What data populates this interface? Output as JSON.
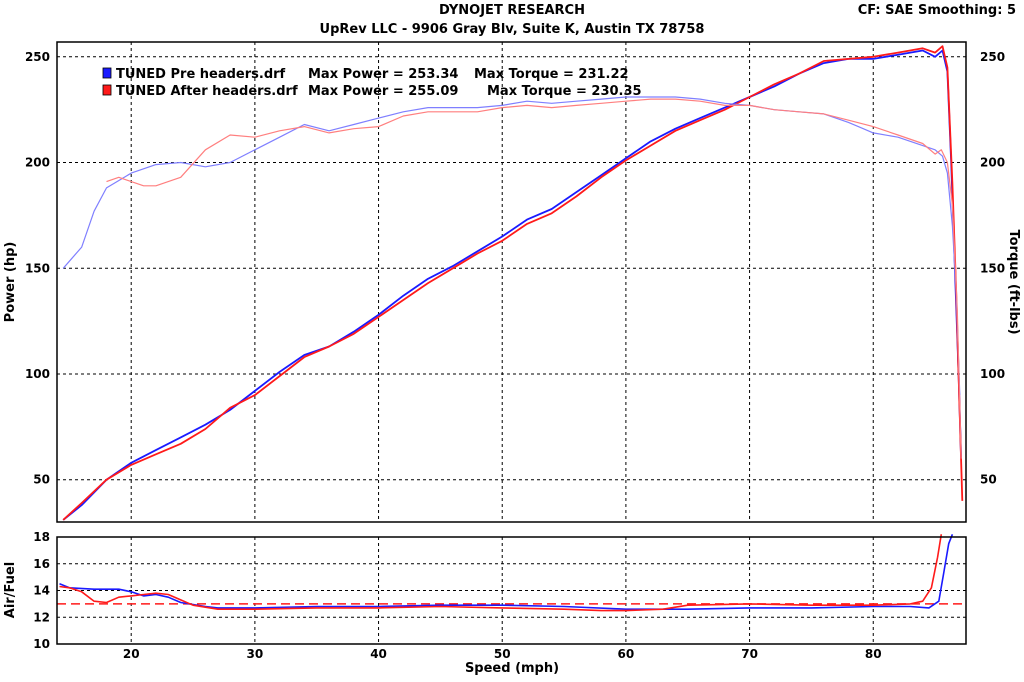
{
  "header": {
    "title": "DYNOJET RESEARCH",
    "subtitle": "UpRev LLC - 9906 Gray Blv, Suite K, Austin TX 78758",
    "settings": "CF: SAE  Smoothing: 5"
  },
  "legend": [
    {
      "file": "TUNED Pre headers.drf",
      "power_text": "Max Power = 253.34",
      "torque_text": "Max Torque = 231.22",
      "color": "#1a1aff"
    },
    {
      "file": "TUNED After headers.drf",
      "power_text": "Max Power = 255.09",
      "torque_text": "Max Torque = 230.35",
      "color": "#ff1a1a"
    }
  ],
  "colors": {
    "pre": "#1a1aff",
    "pre_light": "#7f7fff",
    "after": "#ff1a1a",
    "after_light": "#ff7f7f"
  },
  "chart_data": [
    {
      "type": "line",
      "xlabel": "",
      "ylabel": "Power (hp)",
      "y2label": "Torque (ft-lbs)",
      "xlim": [
        14,
        87.5
      ],
      "ylim": [
        30,
        257
      ],
      "y2lim": [
        30,
        257
      ],
      "x_ticks": [
        20,
        30,
        40,
        50,
        60,
        70,
        80
      ],
      "y_ticks": [
        50,
        100,
        150,
        200,
        250
      ],
      "grid": true,
      "legend_position": "top-left",
      "series": [
        {
          "name": "TUNED Pre headers.drf",
          "measure": "power",
          "color": "#1a1aff",
          "points": [
            [
              14.5,
              31
            ],
            [
              16,
              38
            ],
            [
              18,
              50
            ],
            [
              20,
              58
            ],
            [
              22,
              64
            ],
            [
              24,
              70
            ],
            [
              26,
              76
            ],
            [
              28,
              83
            ],
            [
              30,
              92
            ],
            [
              32,
              101
            ],
            [
              34,
              109
            ],
            [
              36,
              113
            ],
            [
              38,
              120
            ],
            [
              40,
              128
            ],
            [
              42,
              137
            ],
            [
              44,
              145
            ],
            [
              46,
              151
            ],
            [
              48,
              158
            ],
            [
              50,
              165
            ],
            [
              52,
              173
            ],
            [
              54,
              178
            ],
            [
              56,
              186
            ],
            [
              58,
              194
            ],
            [
              60,
              202
            ],
            [
              62,
              210
            ],
            [
              64,
              216
            ],
            [
              66,
              221
            ],
            [
              68,
              226
            ],
            [
              70,
              231
            ],
            [
              72,
              236
            ],
            [
              74,
              242
            ],
            [
              76,
              247
            ],
            [
              78,
              249
            ],
            [
              80,
              249
            ],
            [
              82,
              251
            ],
            [
              84,
              253
            ],
            [
              85,
              250
            ],
            [
              85.6,
              253
            ],
            [
              86,
              243
            ],
            [
              86.3,
              200
            ],
            [
              86.6,
              150
            ],
            [
              86.9,
              100
            ],
            [
              87.1,
              60
            ]
          ]
        },
        {
          "name": "TUNED After headers.drf",
          "measure": "power",
          "color": "#ff1a1a",
          "points": [
            [
              14.5,
              31
            ],
            [
              16,
              39
            ],
            [
              18,
              50
            ],
            [
              20,
              57
            ],
            [
              22,
              62
            ],
            [
              24,
              67
            ],
            [
              26,
              74
            ],
            [
              28,
              84
            ],
            [
              30,
              90
            ],
            [
              32,
              99
            ],
            [
              34,
              108
            ],
            [
              36,
              113
            ],
            [
              38,
              119
            ],
            [
              40,
              127
            ],
            [
              42,
              135
            ],
            [
              44,
              143
            ],
            [
              46,
              150
            ],
            [
              48,
              157
            ],
            [
              50,
              163
            ],
            [
              52,
              171
            ],
            [
              54,
              176
            ],
            [
              56,
              184
            ],
            [
              58,
              193
            ],
            [
              60,
              201
            ],
            [
              62,
              208
            ],
            [
              64,
              215
            ],
            [
              66,
              220
            ],
            [
              68,
              225
            ],
            [
              70,
              231
            ],
            [
              72,
              237
            ],
            [
              74,
              242
            ],
            [
              76,
              248
            ],
            [
              78,
              249
            ],
            [
              80,
              250
            ],
            [
              82,
              252
            ],
            [
              84,
              254
            ],
            [
              85,
              252
            ],
            [
              85.6,
              255
            ],
            [
              86,
              245
            ],
            [
              86.4,
              190
            ],
            [
              86.7,
              140
            ],
            [
              87,
              80
            ],
            [
              87.2,
              40
            ]
          ]
        },
        {
          "name": "TUNED Pre headers.drf",
          "measure": "torque",
          "color": "#7f7fff",
          "points": [
            [
              14.5,
              150
            ],
            [
              16,
              160
            ],
            [
              17,
              177
            ],
            [
              18,
              188
            ],
            [
              20,
              195
            ],
            [
              22,
              199
            ],
            [
              24,
              200
            ],
            [
              26,
              198
            ],
            [
              28,
              200
            ],
            [
              30,
              206
            ],
            [
              32,
              212
            ],
            [
              34,
              218
            ],
            [
              36,
              215
            ],
            [
              38,
              218
            ],
            [
              40,
              221
            ],
            [
              42,
              224
            ],
            [
              44,
              226
            ],
            [
              46,
              226
            ],
            [
              48,
              226
            ],
            [
              50,
              227
            ],
            [
              52,
              229
            ],
            [
              54,
              228
            ],
            [
              56,
              229
            ],
            [
              58,
              230
            ],
            [
              60,
              231
            ],
            [
              62,
              231
            ],
            [
              64,
              231
            ],
            [
              66,
              230
            ],
            [
              68,
              228
            ],
            [
              70,
              227
            ],
            [
              72,
              225
            ],
            [
              74,
              224
            ],
            [
              76,
              223
            ],
            [
              78,
              219
            ],
            [
              80,
              214
            ],
            [
              82,
              212
            ],
            [
              84,
              208
            ],
            [
              85,
              206
            ],
            [
              85.6,
              203
            ],
            [
              86,
              195
            ],
            [
              86.4,
              170
            ],
            [
              86.7,
              140
            ],
            [
              87,
              90
            ]
          ]
        },
        {
          "name": "TUNED After headers.drf",
          "measure": "torque",
          "color": "#ff7f7f",
          "points": [
            [
              18,
              191
            ],
            [
              19,
              193
            ],
            [
              20,
              191
            ],
            [
              21,
              189
            ],
            [
              22,
              189
            ],
            [
              24,
              193
            ],
            [
              26,
              206
            ],
            [
              28,
              213
            ],
            [
              30,
              212
            ],
            [
              32,
              215
            ],
            [
              34,
              217
            ],
            [
              36,
              214
            ],
            [
              38,
              216
            ],
            [
              40,
              217
            ],
            [
              42,
              222
            ],
            [
              44,
              224
            ],
            [
              46,
              224
            ],
            [
              48,
              224
            ],
            [
              50,
              226
            ],
            [
              52,
              227
            ],
            [
              54,
              226
            ],
            [
              56,
              227
            ],
            [
              58,
              228
            ],
            [
              60,
              229
            ],
            [
              62,
              230
            ],
            [
              64,
              230
            ],
            [
              66,
              229
            ],
            [
              68,
              227
            ],
            [
              70,
              227
            ],
            [
              72,
              225
            ],
            [
              74,
              224
            ],
            [
              76,
              223
            ],
            [
              78,
              220
            ],
            [
              80,
              217
            ],
            [
              82,
              213
            ],
            [
              84,
              209
            ],
            [
              85,
              204
            ],
            [
              85.5,
              206
            ],
            [
              86,
              200
            ],
            [
              86.4,
              180
            ],
            [
              86.8,
              130
            ],
            [
              87.1,
              60
            ]
          ]
        }
      ]
    },
    {
      "type": "line",
      "xlabel": "Speed (mph)",
      "ylabel": "Air/Fuel",
      "xlim": [
        14,
        87.5
      ],
      "ylim": [
        10,
        18
      ],
      "x_ticks": [
        20,
        30,
        40,
        50,
        60,
        70,
        80
      ],
      "y_ticks": [
        10,
        12,
        14,
        16,
        18
      ],
      "grid": true,
      "reference_line": {
        "y": 13,
        "color": "#ff1a1a",
        "style": "dashed"
      },
      "series": [
        {
          "name": "TUNED Pre headers.drf",
          "color": "#1a1aff",
          "points": [
            [
              14.2,
              14.5
            ],
            [
              15,
              14.2
            ],
            [
              17,
              14.1
            ],
            [
              19,
              14.1
            ],
            [
              20,
              13.9
            ],
            [
              21,
              13.6
            ],
            [
              22,
              13.7
            ],
            [
              23,
              13.5
            ],
            [
              24,
              13.1
            ],
            [
              26,
              12.8
            ],
            [
              27,
              12.7
            ],
            [
              30,
              12.7
            ],
            [
              35,
              12.8
            ],
            [
              40,
              12.8
            ],
            [
              45,
              12.9
            ],
            [
              50,
              12.9
            ],
            [
              55,
              12.8
            ],
            [
              60,
              12.6
            ],
            [
              65,
              12.6
            ],
            [
              70,
              12.7
            ],
            [
              75,
              12.7
            ],
            [
              80,
              12.8
            ],
            [
              83,
              12.8
            ],
            [
              84.5,
              12.7
            ],
            [
              85.3,
              13.2
            ],
            [
              85.7,
              15.3
            ],
            [
              86.1,
              17.5
            ],
            [
              86.4,
              18.2
            ]
          ]
        },
        {
          "name": "TUNED After headers.drf",
          "color": "#ff1a1a",
          "points": [
            [
              14.2,
              14.3
            ],
            [
              15,
              14.2
            ],
            [
              16,
              13.9
            ],
            [
              17,
              13.2
            ],
            [
              18,
              13.1
            ],
            [
              19,
              13.5
            ],
            [
              20,
              13.6
            ],
            [
              21,
              13.7
            ],
            [
              22,
              13.8
            ],
            [
              23,
              13.7
            ],
            [
              24,
              13.3
            ],
            [
              25,
              12.9
            ],
            [
              27,
              12.6
            ],
            [
              30,
              12.6
            ],
            [
              35,
              12.7
            ],
            [
              40,
              12.7
            ],
            [
              45,
              12.8
            ],
            [
              50,
              12.7
            ],
            [
              55,
              12.6
            ],
            [
              58,
              12.5
            ],
            [
              60,
              12.5
            ],
            [
              63,
              12.6
            ],
            [
              65,
              12.9
            ],
            [
              70,
              13.0
            ],
            [
              75,
              12.9
            ],
            [
              80,
              12.9
            ],
            [
              83,
              13.0
            ],
            [
              84,
              13.2
            ],
            [
              84.7,
              14.2
            ],
            [
              85.2,
              16.5
            ],
            [
              85.5,
              18.2
            ]
          ]
        }
      ]
    }
  ]
}
